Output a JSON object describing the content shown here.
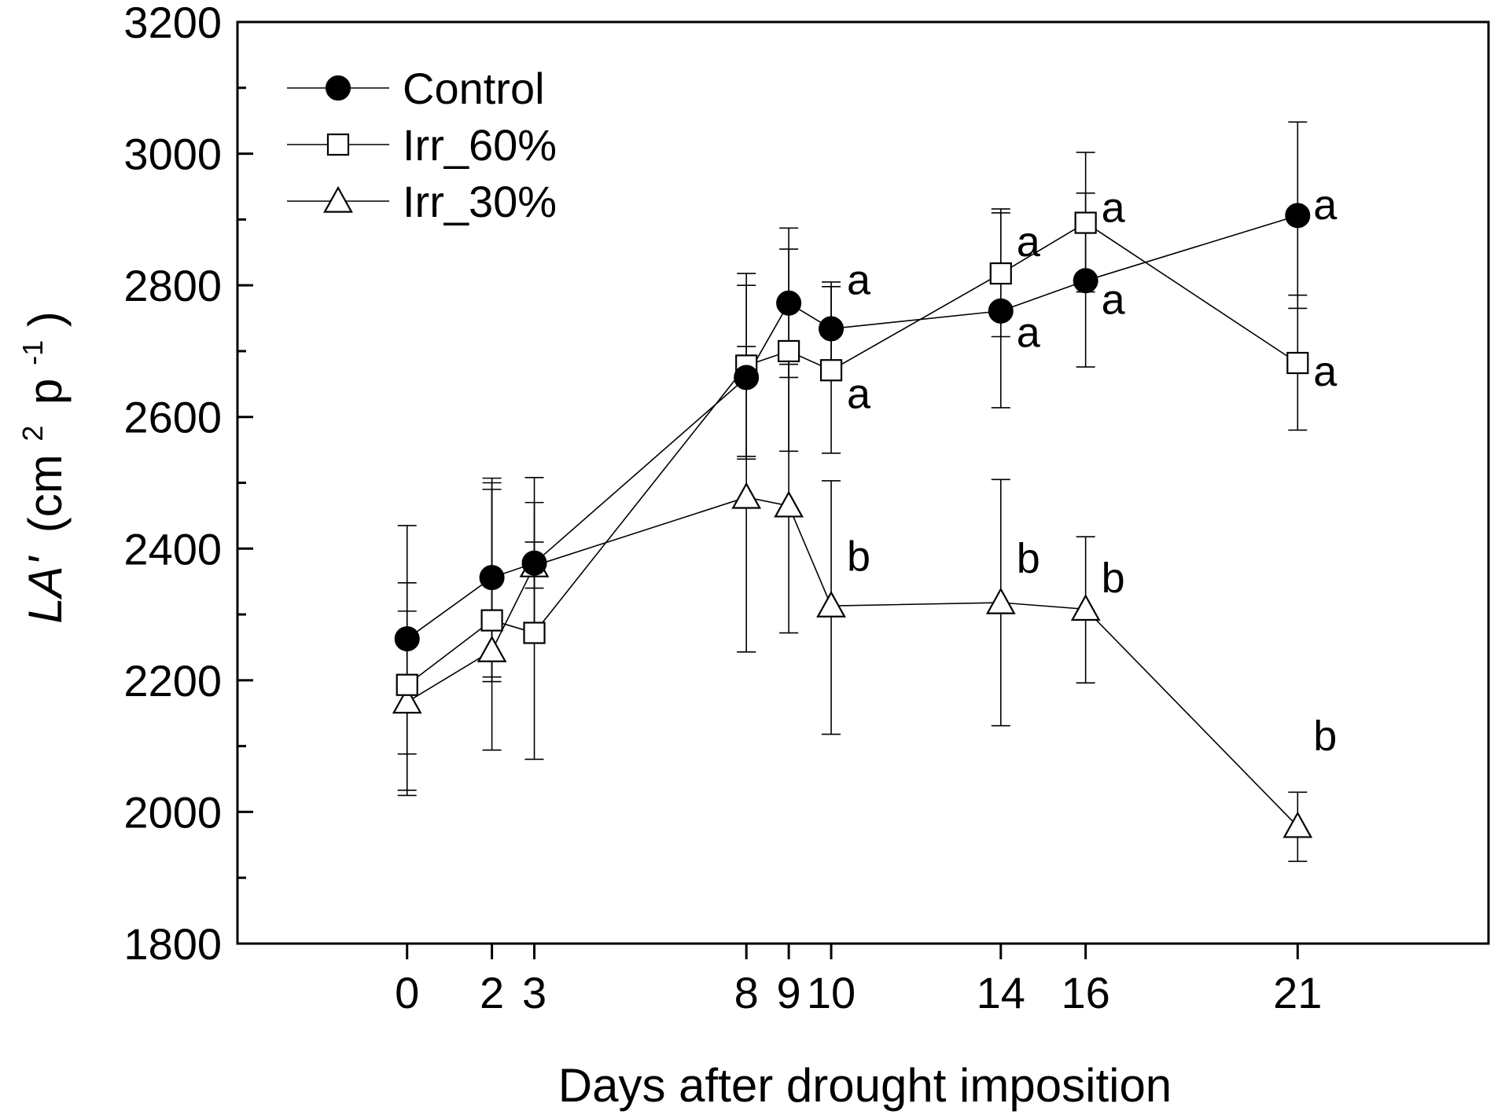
{
  "chart_data": {
    "type": "line",
    "title": "",
    "xlabel": "Days after drought imposition",
    "ylabel": {
      "italic": "LA'",
      "rest": "(cm",
      "sup1": "2",
      "mid": "p",
      "sup2": "-1",
      "close": ")"
    },
    "xlim": [
      -4,
      25.5
    ],
    "ylim": [
      1800,
      3200
    ],
    "xticks": [
      0,
      2,
      3,
      8,
      9,
      10,
      14,
      16,
      21
    ],
    "xtick_labels": [
      "0",
      "2",
      "3",
      "8",
      "9",
      "10",
      "14",
      "16",
      "21"
    ],
    "yticks": [
      1800,
      2000,
      2200,
      2400,
      2600,
      2800,
      3000,
      3200
    ],
    "ytick_labels": [
      "1800",
      "2000",
      "2200",
      "2400",
      "2600",
      "2800",
      "3000",
      "3200"
    ],
    "y_minor_step": 100,
    "series": [
      {
        "name": "Control",
        "marker": "filled-circle",
        "x": [
          0,
          2,
          3,
          8,
          9,
          10,
          14,
          16,
          21
        ],
        "y": [
          2263,
          2356,
          2378,
          2660,
          2773,
          2734,
          2761,
          2807,
          2906
        ],
        "err_low": [
          2025,
          2094,
          2272,
          2536,
          2660,
          2670,
          2614,
          2676,
          2765
        ],
        "err_high": [
          2348,
          2500,
          2470,
          2800,
          2855,
          2798,
          2910,
          2940,
          3048
        ]
      },
      {
        "name": "Irr_60%",
        "marker": "open-square",
        "x": [
          0,
          2,
          3,
          8,
          9,
          10,
          14,
          16,
          21
        ],
        "y": [
          2193,
          2291,
          2272,
          2678,
          2700,
          2671,
          2818,
          2895,
          2682
        ],
        "err_low": [
          2033,
          2198,
          2080,
          2540,
          2548,
          2545,
          2722,
          2790,
          2580
        ],
        "err_high": [
          2305,
          2507,
          2410,
          2818,
          2887,
          2805,
          2916,
          3002,
          2785
        ]
      },
      {
        "name": "Irr_30%",
        "marker": "open-triangle",
        "x": [
          0,
          2,
          3,
          8,
          9,
          10,
          14,
          16,
          21
        ],
        "y": [
          2167,
          2245,
          2374,
          2478,
          2465,
          2313,
          2318,
          2308,
          1978
        ],
        "err_low": [
          2088,
          2205,
          2340,
          2243,
          2272,
          2118,
          2131,
          2196,
          1925
        ],
        "err_high": [
          2435,
          2490,
          2508,
          2707,
          2680,
          2503,
          2505,
          2418,
          2030
        ]
      }
    ],
    "annotations": [
      {
        "text": "a",
        "x": 10,
        "y": 2808
      },
      {
        "text": "a",
        "x": 10,
        "y": 2635
      },
      {
        "text": "b",
        "x": 10,
        "y": 2388
      },
      {
        "text": "a",
        "x": 14,
        "y": 2866
      },
      {
        "text": "a",
        "x": 14,
        "y": 2728
      },
      {
        "text": "b",
        "x": 14,
        "y": 2385
      },
      {
        "text": "a",
        "x": 16,
        "y": 2918
      },
      {
        "text": "a",
        "x": 16,
        "y": 2778
      },
      {
        "text": "b",
        "x": 16,
        "y": 2355
      },
      {
        "text": "a",
        "x": 21,
        "y": 2922
      },
      {
        "text": "a",
        "x": 21,
        "y": 2669
      },
      {
        "text": "b",
        "x": 21,
        "y": 2115
      }
    ],
    "legend_position": "top-left",
    "grid": false
  }
}
